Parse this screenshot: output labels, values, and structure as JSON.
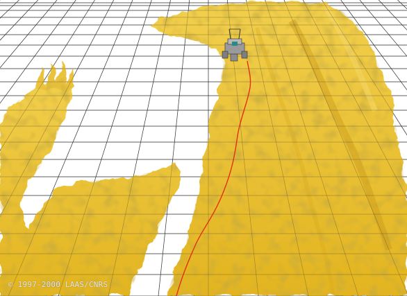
{
  "scene": {
    "colors": {
      "background": "#ffffff",
      "grid": "#2e2e2e",
      "terrain": "#e8bd2a",
      "terrain_shadow": "#b8901a",
      "terrain_highlight": "#f5d35a",
      "trajectory": "#e03010",
      "rover_body": "#9a9a9a"
    }
  },
  "copyright": "© 1997-2000 LAAS/CNRS"
}
